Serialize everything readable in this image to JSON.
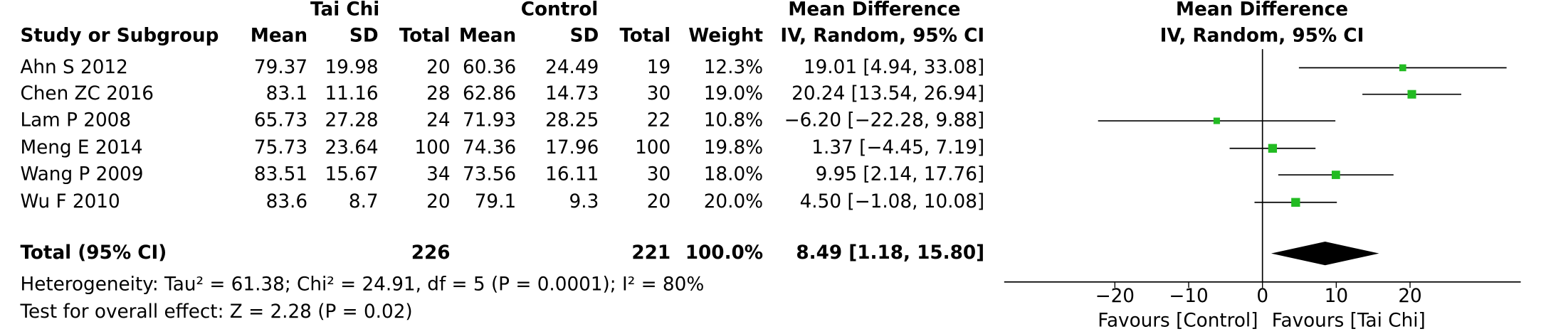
{
  "chart_data": {
    "type": "forest",
    "group_headers": [
      "Tai Chi",
      "Control",
      "Mean Difference"
    ],
    "plot_headers": [
      "Mean Difference",
      "IV, Random, 95% CI"
    ],
    "columns": [
      "Study or Subgroup",
      "Mean",
      "SD",
      "Total",
      "Mean",
      "SD",
      "Total",
      "Weight",
      "IV, Random, 95% CI"
    ],
    "studies": [
      "Ahn S 2012",
      "Chen ZC 2016",
      "Lam P 2008",
      "Meng E 2014",
      "Wang P 2009",
      "Wu F 2010"
    ],
    "rows": [
      [
        79.37,
        19.98,
        20,
        60.36,
        24.49,
        19
      ],
      [
        83.1,
        11.16,
        28,
        62.86,
        14.73,
        30
      ],
      [
        65.73,
        27.28,
        24,
        71.93,
        28.25,
        22
      ],
      [
        75.73,
        23.64,
        100,
        74.36,
        17.96,
        100
      ],
      [
        83.51,
        15.67,
        34,
        73.56,
        16.11,
        30
      ],
      [
        83.6,
        8.7,
        20,
        79.1,
        9.3,
        20
      ]
    ],
    "weights": [
      12.3,
      19.0,
      10.8,
      19.8,
      18.0,
      20.0
    ],
    "weight_labels": [
      "12.3%",
      "19.0%",
      "10.8%",
      "19.8%",
      "18.0%",
      "20.0%"
    ],
    "values": [
      19.01,
      20.24,
      -6.2,
      1.37,
      9.95,
      4.5
    ],
    "ci_low": [
      4.94,
      13.54,
      -22.28,
      -4.45,
      2.14,
      -1.08
    ],
    "ci_high": [
      33.08,
      26.94,
      9.88,
      7.19,
      17.76,
      10.08
    ],
    "value_labels": [
      "19.01 [4.94, 33.08]",
      "20.24 [13.54, 26.94]",
      "−6.20 [−22.28, 9.88]",
      "1.37 [−4.45, 7.19]",
      "9.95 [2.14, 17.76]",
      "4.50 [−1.08, 10.08]"
    ],
    "total": {
      "label": "Total (95% CI)",
      "n_tai_chi": 226,
      "n_control": 221,
      "weight_label": "100.0%",
      "value": 8.49,
      "ci_low": 1.18,
      "ci_high": 15.8,
      "value_label": "8.49 [1.18, 15.80]"
    },
    "heterogeneity": "Heterogeneity: Tau² = 61.38; Chi² = 24.91, df = 5 (P = 0.0001); I² = 80%",
    "overall_effect": "Test for overall effect: Z = 2.28 (P = 0.02)",
    "xlim": [
      -35,
      35
    ],
    "xticks": [
      {
        "value": -20,
        "label": "−20"
      },
      {
        "value": -10,
        "label": "−10"
      },
      0,
      10,
      20
    ],
    "x_labels": [
      "Favours [Control]",
      "Favours [Tai Chi]"
    ],
    "color": "#22bb22"
  }
}
